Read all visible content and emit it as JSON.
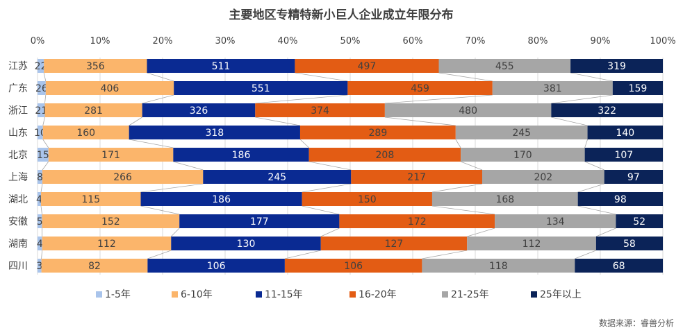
{
  "chart_data": {
    "type": "bar",
    "orientation": "horizontal",
    "stacked": "percent",
    "title": "主要地区专精特新小巨人企业成立年限分布",
    "source": "数据来源：睿兽分析",
    "x_ticks": [
      "0%",
      "10%",
      "20%",
      "30%",
      "40%",
      "50%",
      "60%",
      "70%",
      "80%",
      "90%",
      "100%"
    ],
    "xlim": [
      0,
      100
    ],
    "legend_position": "bottom",
    "categories": [
      "江苏",
      "广东",
      "浙江",
      "山东",
      "北京",
      "上海",
      "湖北",
      "安徽",
      "湖南",
      "四川"
    ],
    "series": [
      {
        "name": "1-5年",
        "color": "#a9c4eb",
        "text_color": "#404040",
        "values": [
          22,
          26,
          21,
          10,
          15,
          8,
          4,
          5,
          4,
          3
        ]
      },
      {
        "name": "6-10年",
        "color": "#fbb56b",
        "text_color": "#404040",
        "values": [
          356,
          406,
          281,
          160,
          171,
          266,
          115,
          152,
          112,
          82
        ]
      },
      {
        "name": "11-15年",
        "color": "#0a2a92",
        "text_color": "#ffffff",
        "values": [
          511,
          551,
          326,
          318,
          186,
          245,
          186,
          177,
          130,
          106
        ]
      },
      {
        "name": "16-20年",
        "color": "#e35c14",
        "text_color": "#404040",
        "values": [
          497,
          459,
          374,
          289,
          208,
          217,
          150,
          172,
          127,
          106
        ]
      },
      {
        "name": "21-25年",
        "color": "#a6a6a6",
        "text_color": "#404040",
        "values": [
          455,
          381,
          480,
          245,
          170,
          202,
          168,
          134,
          112,
          118
        ]
      },
      {
        "name": "25年以上",
        "color": "#0b2358",
        "text_color": "#ffffff",
        "values": [
          319,
          159,
          322,
          140,
          107,
          97,
          98,
          52,
          58,
          68
        ]
      }
    ]
  }
}
